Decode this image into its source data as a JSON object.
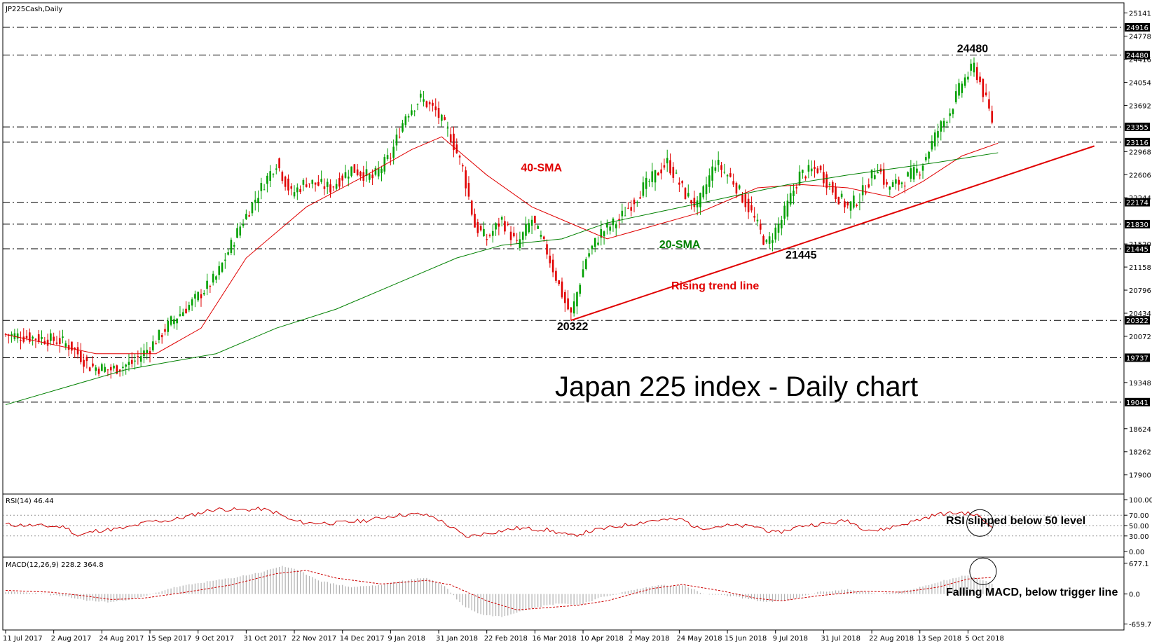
{
  "instrument_label": "JP225Cash,Daily",
  "title": "Japan 225 index - Daily chart",
  "colors": {
    "bull": "#00a000",
    "bear": "#e00000",
    "sma40": "#e00000",
    "sma20": "#008000",
    "trendline": "#e00000",
    "rsi": "#cc0000",
    "macd_hist": "#b0b0b0",
    "macd_signal": "#cc0000"
  },
  "chart_data": [
    {
      "type": "candlestick",
      "name": "price",
      "ylim": [
        17600,
        25300
      ],
      "y_tick_labels": [
        "25141",
        "24778",
        "24416",
        "24054",
        "23692",
        "22968",
        "22606",
        "22244",
        "21520",
        "21158",
        "20796",
        "20434",
        "20072",
        "19348",
        "18624",
        "18262",
        "17900"
      ],
      "highlight_levels": [
        "24916",
        "24480",
        "23355",
        "23116",
        "22174",
        "21830",
        "21445",
        "20322",
        "19737",
        "19041"
      ],
      "x_tick_labels": [
        "11 Jul 2017",
        "2 Aug 2017",
        "24 Aug 2017",
        "15 Sep 2017",
        "9 Oct 2017",
        "31 Oct 2017",
        "22 Nov 2017",
        "14 Dec 2017",
        "9 Jan 2018",
        "31 Jan 2018",
        "22 Feb 2018",
        "16 Mar 2018",
        "10 Apr 2018",
        "2 May 2018",
        "24 May 2018",
        "15 Jun 2018",
        "9 Jul 2018",
        "31 Jul 2018",
        "22 Aug 2018",
        "13 Sep 2018",
        "5 Oct 2018"
      ],
      "close_keypoints": [
        [
          0,
          20100
        ],
        [
          10,
          20050
        ],
        [
          18,
          20000
        ],
        [
          22,
          19900
        ],
        [
          28,
          19600
        ],
        [
          35,
          19550
        ],
        [
          42,
          19650
        ],
        [
          48,
          19900
        ],
        [
          55,
          20300
        ],
        [
          62,
          20600
        ],
        [
          70,
          21000
        ],
        [
          78,
          21800
        ],
        [
          85,
          22400
        ],
        [
          90,
          22800
        ],
        [
          95,
          22300
        ],
        [
          100,
          22500
        ],
        [
          108,
          22400
        ],
        [
          115,
          22700
        ],
        [
          122,
          22550
        ],
        [
          128,
          22900
        ],
        [
          133,
          23550
        ],
        [
          138,
          23800
        ],
        [
          143,
          23600
        ],
        [
          148,
          23200
        ],
        [
          152,
          22700
        ],
        [
          156,
          21800
        ],
        [
          160,
          21600
        ],
        [
          165,
          21900
        ],
        [
          170,
          21500
        ],
        [
          175,
          21900
        ],
        [
          180,
          21400
        ],
        [
          186,
          20600
        ],
        [
          188,
          20400
        ],
        [
          193,
          21300
        ],
        [
          198,
          21700
        ],
        [
          204,
          21900
        ],
        [
          212,
          22400
        ],
        [
          220,
          22800
        ],
        [
          226,
          22300
        ],
        [
          230,
          22100
        ],
        [
          236,
          22800
        ],
        [
          242,
          22500
        ],
        [
          248,
          22000
        ],
        [
          253,
          21500
        ],
        [
          258,
          21900
        ],
        [
          264,
          22600
        ],
        [
          270,
          22700
        ],
        [
          276,
          22300
        ],
        [
          280,
          22100
        ],
        [
          284,
          22250
        ],
        [
          290,
          22750
        ],
        [
          293,
          22400
        ],
        [
          298,
          22500
        ],
        [
          304,
          22700
        ],
        [
          310,
          23300
        ],
        [
          314,
          23600
        ],
        [
          318,
          24050
        ],
        [
          322,
          24300
        ],
        [
          324,
          24050
        ],
        [
          328,
          23450
        ]
      ],
      "series": [
        {
          "name": "40-SMA",
          "values": [
            [
              0,
              20100
            ],
            [
              30,
              19800
            ],
            [
              50,
              19800
            ],
            [
              65,
              20200
            ],
            [
              80,
              21300
            ],
            [
              100,
              22100
            ],
            [
              120,
              22600
            ],
            [
              135,
              23000
            ],
            [
              145,
              23200
            ],
            [
              160,
              22600
            ],
            [
              175,
              22100
            ],
            [
              190,
              21800
            ],
            [
              200,
              21600
            ],
            [
              215,
              21800
            ],
            [
              230,
              22000
            ],
            [
              250,
              22400
            ],
            [
              265,
              22450
            ],
            [
              280,
              22400
            ],
            [
              295,
              22250
            ],
            [
              305,
              22500
            ],
            [
              318,
              22900
            ],
            [
              330,
              23100
            ]
          ]
        },
        {
          "name": "20-SMA",
          "values": [
            [
              0,
              19000
            ],
            [
              40,
              19550
            ],
            [
              70,
              19800
            ],
            [
              90,
              20200
            ],
            [
              110,
              20500
            ],
            [
              130,
              20900
            ],
            [
              150,
              21300
            ],
            [
              165,
              21500
            ],
            [
              185,
              21600
            ],
            [
              200,
              21850
            ],
            [
              220,
              22050
            ],
            [
              240,
              22250
            ],
            [
              260,
              22450
            ],
            [
              280,
              22600
            ],
            [
              295,
              22700
            ],
            [
              310,
              22800
            ],
            [
              330,
              22950
            ]
          ]
        }
      ],
      "trend_line": {
        "name": "Rising trend line",
        "values": [
          [
            188,
            20322
          ],
          [
            362,
            23055
          ]
        ]
      },
      "annotations": [
        {
          "text": "24480",
          "x": 321,
          "y": 24480
        },
        {
          "text": "20322",
          "x": 188,
          "y": 20322
        },
        {
          "text": "21445",
          "x": 264,
          "y": 21445
        },
        {
          "text": "40-SMA",
          "x": 176,
          "y": 22700
        },
        {
          "text": "20-SMA",
          "x": 222,
          "y": 21500
        },
        {
          "text": "Rising trend line",
          "x": 226,
          "y": 20850
        }
      ]
    },
    {
      "type": "line",
      "name": "RSI(14) 46.44",
      "ylim": [
        0,
        100
      ],
      "y_tick_labels": [
        "100.00",
        "70.00",
        "50.00",
        "30.00",
        "0.00"
      ],
      "levels": [
        70,
        50,
        30
      ],
      "values": [
        [
          0,
          52
        ],
        [
          10,
          50
        ],
        [
          20,
          47
        ],
        [
          24,
          30
        ],
        [
          30,
          40
        ],
        [
          40,
          45
        ],
        [
          48,
          58
        ],
        [
          55,
          60
        ],
        [
          62,
          70
        ],
        [
          68,
          80
        ],
        [
          72,
          82
        ],
        [
          78,
          80
        ],
        [
          85,
          82
        ],
        [
          90,
          75
        ],
        [
          95,
          60
        ],
        [
          100,
          55
        ],
        [
          110,
          55
        ],
        [
          120,
          60
        ],
        [
          130,
          70
        ],
        [
          138,
          72
        ],
        [
          143,
          65
        ],
        [
          150,
          40
        ],
        [
          153,
          28
        ],
        [
          160,
          35
        ],
        [
          170,
          45
        ],
        [
          180,
          42
        ],
        [
          188,
          30
        ],
        [
          195,
          40
        ],
        [
          205,
          50
        ],
        [
          215,
          60
        ],
        [
          225,
          62
        ],
        [
          230,
          45
        ],
        [
          240,
          50
        ],
        [
          250,
          48
        ],
        [
          256,
          35
        ],
        [
          265,
          50
        ],
        [
          275,
          55
        ],
        [
          280,
          60
        ],
        [
          285,
          45
        ],
        [
          290,
          40
        ],
        [
          300,
          55
        ],
        [
          310,
          72
        ],
        [
          318,
          75
        ],
        [
          323,
          70
        ],
        [
          328,
          46.44
        ]
      ],
      "annotation": "RSI slipped below 50 level"
    },
    {
      "type": "bar",
      "name": "MACD(12,26,9) 228.2 364.8",
      "ylim": [
        -700,
        720
      ],
      "y_tick_labels": [
        "677.1",
        "0.0",
        "-659.7"
      ],
      "hist_keypoints": [
        [
          0,
          50
        ],
        [
          10,
          20
        ],
        [
          20,
          -60
        ],
        [
          28,
          -150
        ],
        [
          35,
          -180
        ],
        [
          45,
          -80
        ],
        [
          55,
          130
        ],
        [
          65,
          250
        ],
        [
          75,
          350
        ],
        [
          85,
          480
        ],
        [
          92,
          620
        ],
        [
          98,
          500
        ],
        [
          105,
          280
        ],
        [
          115,
          150
        ],
        [
          125,
          200
        ],
        [
          133,
          300
        ],
        [
          140,
          360
        ],
        [
          146,
          180
        ],
        [
          152,
          -250
        ],
        [
          158,
          -450
        ],
        [
          165,
          -500
        ],
        [
          175,
          -300
        ],
        [
          185,
          -200
        ],
        [
          190,
          -250
        ],
        [
          198,
          -80
        ],
        [
          208,
          80
        ],
        [
          218,
          200
        ],
        [
          226,
          180
        ],
        [
          232,
          0
        ],
        [
          242,
          -50
        ],
        [
          252,
          -170
        ],
        [
          260,
          -150
        ],
        [
          270,
          40
        ],
        [
          280,
          100
        ],
        [
          290,
          0
        ],
        [
          300,
          80
        ],
        [
          312,
          300
        ],
        [
          320,
          420
        ],
        [
          328,
          228
        ]
      ],
      "signal_keypoints": [
        [
          0,
          80
        ],
        [
          15,
          40
        ],
        [
          25,
          -30
        ],
        [
          35,
          -120
        ],
        [
          45,
          -100
        ],
        [
          60,
          40
        ],
        [
          75,
          200
        ],
        [
          90,
          450
        ],
        [
          100,
          520
        ],
        [
          110,
          350
        ],
        [
          125,
          220
        ],
        [
          140,
          300
        ],
        [
          148,
          200
        ],
        [
          160,
          -150
        ],
        [
          170,
          -350
        ],
        [
          180,
          -300
        ],
        [
          190,
          -250
        ],
        [
          200,
          -150
        ],
        [
          215,
          120
        ],
        [
          225,
          210
        ],
        [
          238,
          70
        ],
        [
          250,
          -100
        ],
        [
          258,
          -150
        ],
        [
          270,
          -40
        ],
        [
          285,
          60
        ],
        [
          298,
          40
        ],
        [
          310,
          150
        ],
        [
          320,
          330
        ],
        [
          328,
          364.8
        ]
      ],
      "annotation": "Falling MACD, below trigger line"
    }
  ]
}
